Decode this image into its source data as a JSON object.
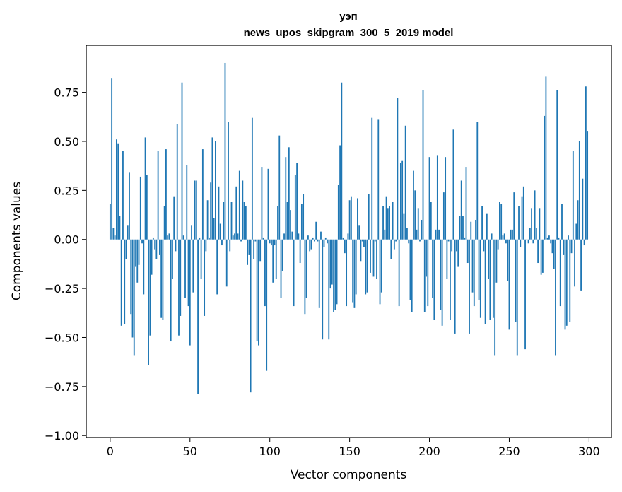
{
  "chart_data": {
    "type": "bar",
    "title": "уэп",
    "subtitle": "news_upos_skipgram_300_5_2019 model",
    "xlabel": "Vector components",
    "ylabel": "Components values",
    "xlim": [
      -15,
      314
    ],
    "ylim": [
      -1.01,
      0.99
    ],
    "xticks": [
      0,
      50,
      100,
      150,
      200,
      250,
      300
    ],
    "xtick_labels": [
      "0",
      "50",
      "100",
      "150",
      "200",
      "250",
      "300"
    ],
    "yticks": [
      0.75,
      0.5,
      0.25,
      0.0,
      -0.25,
      -0.5,
      -0.75,
      -1.0
    ],
    "ytick_labels": [
      "0.75",
      "0.50",
      "0.25",
      "0.00",
      "−0.25",
      "−0.50",
      "−0.75",
      "−1.00"
    ],
    "grid": false,
    "color": "#1f77b4",
    "x": [
      0,
      1,
      2,
      3,
      4,
      5,
      6,
      7,
      8,
      9,
      10,
      11,
      12,
      13,
      14,
      15,
      16,
      17,
      18,
      19,
      20,
      21,
      22,
      23,
      24,
      25,
      26,
      27,
      28,
      29,
      30,
      31,
      32,
      33,
      34,
      35,
      36,
      37,
      38,
      39,
      40,
      41,
      42,
      43,
      44,
      45,
      46,
      47,
      48,
      49,
      50,
      51,
      52,
      53,
      54,
      55,
      56,
      57,
      58,
      59,
      60,
      61,
      62,
      63,
      64,
      65,
      66,
      67,
      68,
      69,
      70,
      71,
      72,
      73,
      74,
      75,
      76,
      77,
      78,
      79,
      80,
      81,
      82,
      83,
      84,
      85,
      86,
      87,
      88,
      89,
      90,
      91,
      92,
      93,
      94,
      95,
      96,
      97,
      98,
      99,
      100,
      101,
      102,
      103,
      104,
      105,
      106,
      107,
      108,
      109,
      110,
      111,
      112,
      113,
      114,
      115,
      116,
      117,
      118,
      119,
      120,
      121,
      122,
      123,
      124,
      125,
      126,
      127,
      128,
      129,
      130,
      131,
      132,
      133,
      134,
      135,
      136,
      137,
      138,
      139,
      140,
      141,
      142,
      143,
      144,
      145,
      146,
      147,
      148,
      149,
      150,
      151,
      152,
      153,
      154,
      155,
      156,
      157,
      158,
      159,
      160,
      161,
      162,
      163,
      164,
      165,
      166,
      167,
      168,
      169,
      170,
      171,
      172,
      173,
      174,
      175,
      176,
      177,
      178,
      179,
      180,
      181,
      182,
      183,
      184,
      185,
      186,
      187,
      188,
      189,
      190,
      191,
      192,
      193,
      194,
      195,
      196,
      197,
      198,
      199,
      200,
      201,
      202,
      203,
      204,
      205,
      206,
      207,
      208,
      209,
      210,
      211,
      212,
      213,
      214,
      215,
      216,
      217,
      218,
      219,
      220,
      221,
      222,
      223,
      224,
      225,
      226,
      227,
      228,
      229,
      230,
      231,
      232,
      233,
      234,
      235,
      236,
      237,
      238,
      239,
      240,
      241,
      242,
      243,
      244,
      245,
      246,
      247,
      248,
      249,
      250,
      251,
      252,
      253,
      254,
      255,
      256,
      257,
      258,
      259,
      260,
      261,
      262,
      263,
      264,
      265,
      266,
      267,
      268,
      269,
      270,
      271,
      272,
      273,
      274,
      275,
      276,
      277,
      278,
      279,
      280,
      281,
      282,
      283,
      284,
      285,
      286,
      287,
      288,
      289,
      290,
      291,
      292,
      293,
      294,
      295,
      296,
      297,
      298,
      299
    ],
    "values": [
      0.18,
      0.82,
      0.06,
      0.02,
      0.51,
      0.49,
      0.12,
      -0.44,
      0.45,
      -0.43,
      -0.1,
      0.07,
      0.34,
      -0.38,
      -0.5,
      -0.59,
      -0.14,
      -0.22,
      -0.13,
      0.32,
      -0.02,
      -0.28,
      0.52,
      0.33,
      -0.64,
      -0.49,
      -0.18,
      0.01,
      -0.05,
      -0.1,
      0.45,
      -0.08,
      -0.4,
      -0.41,
      0.17,
      0.46,
      0.02,
      0.03,
      -0.52,
      -0.2,
      0.22,
      -0.06,
      0.59,
      -0.49,
      -0.39,
      0.8,
      0.02,
      -0.3,
      0.38,
      -0.34,
      -0.54,
      0.07,
      -0.27,
      0.3,
      0.3,
      -0.79,
      0.01,
      -0.2,
      0.46,
      -0.39,
      -0.06,
      0.2,
      0.01,
      0.29,
      0.52,
      0.11,
      0.5,
      -0.28,
      0.27,
      0.08,
      -0.03,
      0.19,
      0.9,
      -0.24,
      0.6,
      -0.06,
      0.19,
      0.02,
      0.03,
      0.27,
      0.03,
      0.35,
      -0.01,
      0.3,
      0.19,
      0.17,
      -0.13,
      -0.08,
      -0.78,
      0.62,
      -0.1,
      -0.01,
      -0.52,
      -0.54,
      -0.11,
      0.37,
      0.01,
      -0.34,
      -0.67,
      0.36,
      -0.02,
      -0.03,
      -0.22,
      -0.03,
      -0.2,
      0.17,
      0.53,
      -0.3,
      -0.16,
      0.03,
      0.42,
      0.19,
      0.47,
      0.15,
      0.04,
      -0.34,
      0.33,
      0.39,
      0.03,
      -0.12,
      0.18,
      0.23,
      -0.38,
      -0.3,
      0.02,
      -0.06,
      -0.05,
      0.01,
      -0.01,
      0.09,
      -0.01,
      -0.35,
      0.04,
      -0.51,
      -0.04,
      0.01,
      -0.02,
      -0.51,
      -0.25,
      -0.23,
      -0.37,
      -0.36,
      -0.33,
      0.28,
      0.48,
      0.8,
      0.01,
      -0.07,
      -0.34,
      0.03,
      0.2,
      0.22,
      -0.32,
      -0.35,
      -0.28,
      0.21,
      0.07,
      -0.11,
      -0.01,
      -0.04,
      -0.28,
      -0.27,
      0.23,
      -0.17,
      0.62,
      -0.19,
      -0.01,
      -0.2,
      0.61,
      -0.33,
      -0.27,
      0.17,
      0.05,
      0.22,
      0.16,
      0.17,
      -0.1,
      0.19,
      -0.05,
      -0.01,
      0.72,
      -0.34,
      0.39,
      0.4,
      0.13,
      0.58,
      0.06,
      -0.02,
      -0.31,
      -0.37,
      0.35,
      0.25,
      0.05,
      0.16,
      -0.01,
      0.1,
      0.76,
      -0.37,
      -0.19,
      -0.34,
      0.42,
      0.19,
      -0.3,
      -0.41,
      0.05,
      0.43,
      0.05,
      -0.36,
      -0.44,
      0.24,
      0.42,
      -0.2,
      -0.01,
      -0.41,
      -0.06,
      0.56,
      -0.48,
      -0.06,
      -0.14,
      0.12,
      0.3,
      0.12,
      0.01,
      0.37,
      -0.12,
      -0.48,
      0.09,
      -0.27,
      -0.34,
      0.1,
      0.6,
      -0.31,
      -0.4,
      0.17,
      -0.06,
      -0.43,
      0.13,
      -0.2,
      -0.41,
      0.03,
      -0.4,
      -0.59,
      -0.22,
      -0.05,
      0.19,
      0.18,
      0.02,
      0.03,
      -0.02,
      -0.21,
      -0.46,
      0.05,
      0.05,
      0.24,
      -0.42,
      -0.59,
      0.17,
      -0.04,
      0.22,
      0.27,
      -0.56,
      0.0,
      -0.02,
      0.06,
      0.16,
      -0.02,
      0.25,
      0.06,
      -0.12,
      0.16,
      -0.18,
      -0.17,
      0.63,
      0.83,
      0.01,
      0.02,
      -0.02,
      -0.07,
      -0.15,
      -0.59,
      0.76,
      0.01,
      -0.34,
      0.18,
      -0.08,
      -0.46,
      -0.44,
      0.02,
      -0.42,
      -0.07,
      0.45,
      -0.24,
      0.08,
      0.2,
      0.5,
      -0.26,
      0.31,
      -0.03,
      0.78,
      0.55
    ]
  }
}
